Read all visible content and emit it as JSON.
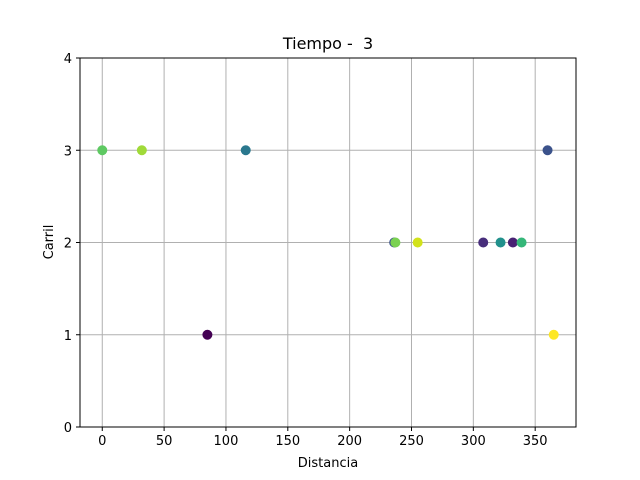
{
  "chart_data": {
    "type": "scatter",
    "title": "Tiempo -  3",
    "xlabel": "Distancia",
    "ylabel": "Carril",
    "xlim": [
      -18,
      383
    ],
    "ylim": [
      0,
      4
    ],
    "grid": true,
    "x_ticks": [
      0,
      50,
      100,
      150,
      200,
      250,
      300,
      350
    ],
    "y_ticks": [
      0,
      1,
      2,
      3,
      4
    ],
    "points": [
      {
        "x": 0,
        "y": 3,
        "color": "#5ec962"
      },
      {
        "x": 32,
        "y": 3,
        "color": "#a0da39"
      },
      {
        "x": 116,
        "y": 3,
        "color": "#2a788e"
      },
      {
        "x": 360,
        "y": 3,
        "color": "#3b528b"
      },
      {
        "x": 85,
        "y": 1,
        "color": "#440154"
      },
      {
        "x": 365,
        "y": 1,
        "color": "#fde725"
      },
      {
        "x": 236,
        "y": 2,
        "color": "#3b528b"
      },
      {
        "x": 237,
        "y": 2,
        "color": "#7ad151"
      },
      {
        "x": 255,
        "y": 2,
        "color": "#d2e21b"
      },
      {
        "x": 308,
        "y": 2,
        "color": "#472d7b"
      },
      {
        "x": 322,
        "y": 2,
        "color": "#21918c"
      },
      {
        "x": 332,
        "y": 2,
        "color": "#482173"
      },
      {
        "x": 339,
        "y": 2,
        "color": "#35b779"
      }
    ]
  }
}
